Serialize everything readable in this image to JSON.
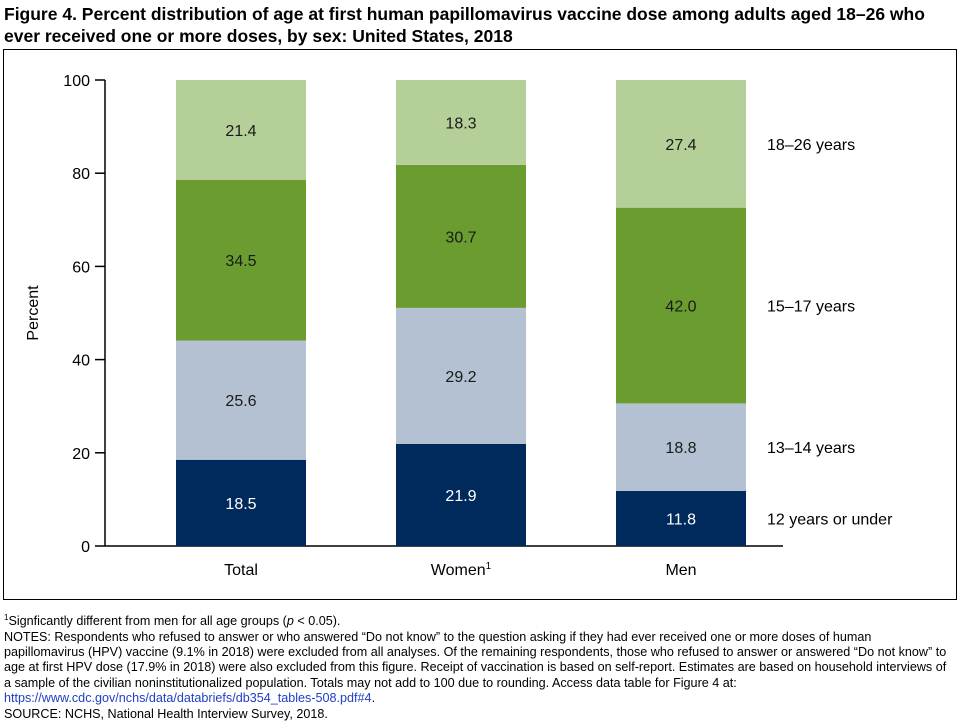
{
  "title": "Figure 4. Percent distribution of age at first human papillomavirus vaccine dose among adults aged 18–26 who ever received one or more doses, by sex: United States, 2018",
  "chart_data": {
    "type": "bar",
    "stacked": true,
    "ylabel": "Percent",
    "ylim": [
      0,
      100
    ],
    "yticks": [
      0,
      20,
      40,
      60,
      80,
      100
    ],
    "categories": [
      "Total",
      "Women",
      "Men"
    ],
    "category_superscripts": [
      "",
      "1",
      ""
    ],
    "series": [
      {
        "name": "12 years or under",
        "values": [
          18.5,
          21.9,
          11.8
        ],
        "color": "#002a5c",
        "label_color": "#ffffff"
      },
      {
        "name": "13–14 years",
        "values": [
          25.6,
          29.2,
          18.8
        ],
        "color": "#b3c1d3",
        "label_color": "#1a1a1a"
      },
      {
        "name": "15–17 years",
        "values": [
          34.5,
          30.7,
          42.0
        ],
        "color": "#6b9c2f",
        "label_color": "#1a1a1a"
      },
      {
        "name": "18–26 years",
        "values": [
          21.4,
          18.3,
          27.4
        ],
        "color": "#b5cf98",
        "label_color": "#1a1a1a"
      }
    ],
    "grid": false,
    "legend_position": "right, inline beside last bar"
  },
  "notes": {
    "footnote_sup": "1",
    "footnote_prefix": "Signficantly different from men for all age groups (",
    "footnote_p": "p",
    "footnote_suffix": " < 0.05).",
    "notes_text": "NOTES: Respondents who refused to answer or who answered “Do not know” to the question asking if they had ever received one or more doses of human papillomavirus (HPV) vaccine (9.1% in 2018) were excluded from all analyses. Of the remaining respondents, those who refused to answer or answered “Do not know” to age at first HPV dose (17.9% in 2018) were also excluded from this figure. Receipt of vaccination is based on self-report. Estimates are based on household interviews of a sample of the civilian noninstitutionalized population. Totals may not add to 100 due to rounding. Access data table for Figure 4 at:",
    "link": "https://www.cdc.gov/nchs/data/databriefs/db354_tables-508.pdf#4",
    "link_suffix": ".",
    "source": "SOURCE: NCHS, National Health Interview Survey, 2018."
  }
}
